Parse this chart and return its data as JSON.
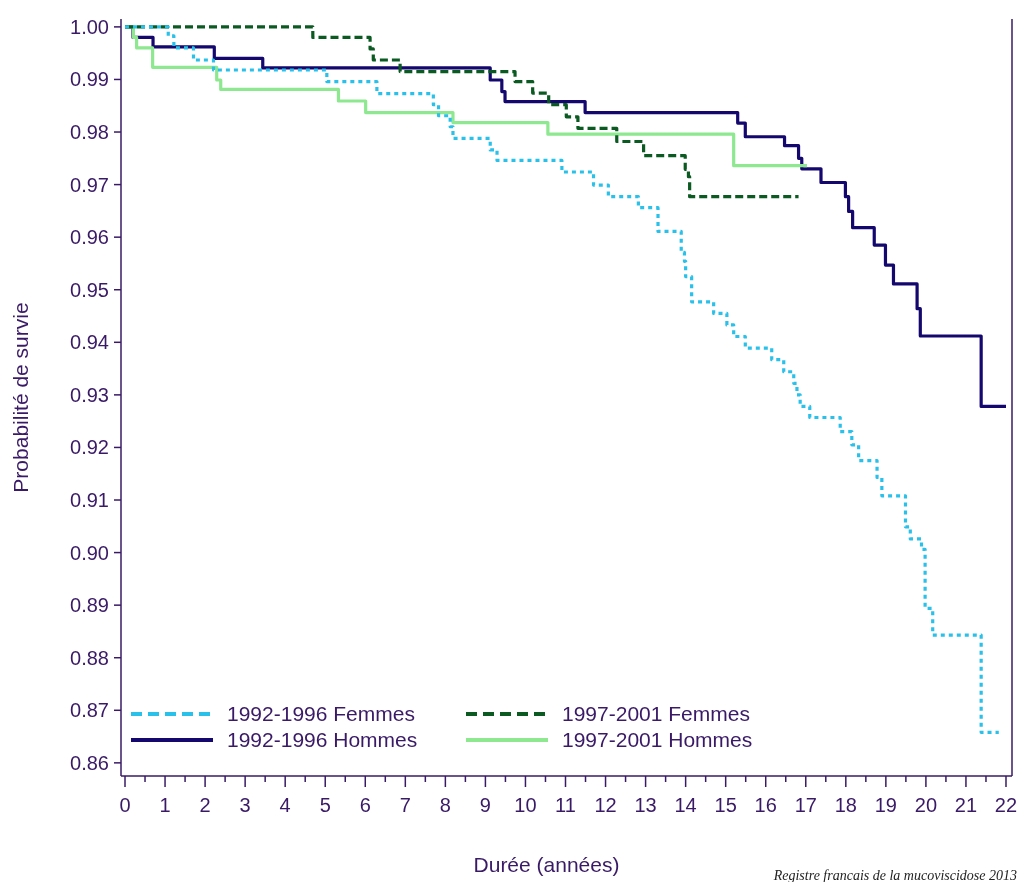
{
  "chart_data": {
    "type": "step",
    "xlabel": "Durée (années)",
    "ylabel": "Probabilité de survie",
    "xlim": [
      -0.1,
      22.15
    ],
    "ylim": [
      0.8575,
      1.0015
    ],
    "xticks": [
      0,
      {
        "value": 0.5,
        "label": null
      },
      1,
      {
        "value": 1.5,
        "label": null
      },
      2,
      {
        "value": 2.5,
        "label": null
      },
      3,
      {
        "value": 3.5,
        "label": null
      },
      4,
      {
        "value": 4.5,
        "label": null
      },
      5,
      {
        "value": 5.5,
        "label": null
      },
      6,
      {
        "value": 6.5,
        "label": null
      },
      7,
      {
        "value": 7.5,
        "label": null
      },
      8,
      {
        "value": 8.5,
        "label": null
      },
      9,
      {
        "value": 9.5,
        "label": null
      },
      10,
      {
        "value": 10.5,
        "label": null
      },
      11,
      {
        "value": 11.5,
        "label": null
      },
      12,
      {
        "value": 12.5,
        "label": null
      },
      13,
      {
        "value": 13.5,
        "label": null
      },
      14,
      {
        "value": 14.5,
        "label": null
      },
      15,
      {
        "value": 15.5,
        "label": null
      },
      16,
      {
        "value": 16.5,
        "label": null
      },
      17,
      {
        "value": 17.5,
        "label": null
      },
      18,
      {
        "value": 18.5,
        "label": null
      },
      19,
      {
        "value": 19.5,
        "label": null
      },
      20,
      {
        "value": 20.5,
        "label": null
      },
      21,
      {
        "value": 21.5,
        "label": null
      },
      22
    ],
    "yticks": [
      {
        "value": 0.86,
        "label": "0.86"
      },
      {
        "value": 0.87,
        "label": "0.87"
      },
      {
        "value": 0.88,
        "label": "0.88"
      },
      {
        "value": 0.89,
        "label": "0.89"
      },
      {
        "value": 0.9,
        "label": "0.90"
      },
      {
        "value": 0.91,
        "label": "0.91"
      },
      {
        "value": 0.92,
        "label": "0.92"
      },
      {
        "value": 0.93,
        "label": "0.93"
      },
      {
        "value": 0.94,
        "label": "0.94"
      },
      {
        "value": 0.95,
        "label": "0.95"
      },
      {
        "value": 0.96,
        "label": "0.96"
      },
      {
        "value": 0.97,
        "label": "0.97"
      },
      {
        "value": 0.98,
        "label": "0.98"
      },
      {
        "value": 0.99,
        "label": "0.99"
      },
      {
        "value": 1,
        "label": "1.00"
      }
    ],
    "legend": "bottom left",
    "grid": false,
    "annotations": [
      "Registre francais de la mucoviscidose 2013"
    ],
    "series": [
      {
        "name": "1992-1996 Femmes",
        "color": "#29c0ea",
        "line_style": "dotted",
        "x": [
          0,
          1.08,
          1.22,
          1.71,
          2.21,
          5.04,
          6.29,
          7.7,
          7.83,
          8.12,
          8.19,
          9.12,
          9.29,
          10.91,
          11.7,
          12.07,
          12.82,
          13.31,
          13.89,
          13.97,
          14.0,
          14.15,
          14.7,
          15.03,
          15.2,
          15.49,
          16.15,
          16.45,
          16.7,
          16.78,
          16.86,
          17.1,
          17.86,
          18.15,
          18.32,
          18.78,
          18.9,
          19.49,
          19.61,
          19.89,
          19.98,
          20.17,
          21.38,
          21.82
        ],
        "values": [
          1.0,
          0.9983,
          0.996,
          0.9937,
          0.9918,
          0.9896,
          0.9873,
          0.9852,
          0.9831,
          0.981,
          0.9788,
          0.9766,
          0.9746,
          0.9724,
          0.9699,
          0.9677,
          0.9656,
          0.9611,
          0.9571,
          0.9554,
          0.9525,
          0.9477,
          0.9455,
          0.9433,
          0.9411,
          0.9389,
          0.9367,
          0.9344,
          0.9322,
          0.93,
          0.9278,
          0.9257,
          0.923,
          0.9205,
          0.9175,
          0.9143,
          0.9108,
          0.9049,
          0.9026,
          0.9006,
          0.8894,
          0.8843,
          0.8658,
          0.8658
        ]
      },
      {
        "name": "1997-2001 Femmes",
        "color": "#0b5a22",
        "line_style": "dashed",
        "x": [
          0,
          4.69,
          6.12,
          6.2,
          6.87,
          9.74,
          10.18,
          10.58,
          11.02,
          11.31,
          12.28,
          12.95,
          13.99,
          14.07,
          14.1,
          16.82
        ],
        "values": [
          1.0,
          0.998,
          0.9958,
          0.9937,
          0.9915,
          0.9896,
          0.9874,
          0.9852,
          0.9829,
          0.9807,
          0.9782,
          0.9755,
          0.9729,
          0.9715,
          0.9677,
          0.9677
        ]
      },
      {
        "name": "1992-1996 Hommes",
        "color": "#14086e",
        "line_style": "solid",
        "x": [
          0,
          0.2,
          0.7,
          2.23,
          3.44,
          9.12,
          9.41,
          9.49,
          11.49,
          15.3,
          15.49,
          16.47,
          16.82,
          16.9,
          17.38,
          17.99,
          18.07,
          18.17,
          18.71,
          18.99,
          19.19,
          19.78,
          19.86,
          21.38,
          22.0
        ],
        "values": [
          1.0,
          0.998,
          0.9962,
          0.994,
          0.9922,
          0.9899,
          0.9877,
          0.9858,
          0.9837,
          0.9817,
          0.9791,
          0.9774,
          0.975,
          0.973,
          0.9704,
          0.9677,
          0.9649,
          0.9618,
          0.9585,
          0.9547,
          0.9511,
          0.9464,
          0.9412,
          0.9278,
          0.9278
        ]
      },
      {
        "name": "1997-2001 Hommes",
        "color": "#8de88f",
        "line_style": "solid",
        "x": [
          0,
          0.21,
          0.29,
          0.69,
          2.29,
          2.39,
          5.33,
          6.01,
          8.19,
          10.56,
          15.2,
          17.03
        ],
        "values": [
          1.0,
          0.998,
          0.996,
          0.9923,
          0.9899,
          0.9881,
          0.9859,
          0.9837,
          0.9818,
          0.9796,
          0.9736,
          0.9736
        ]
      }
    ]
  }
}
